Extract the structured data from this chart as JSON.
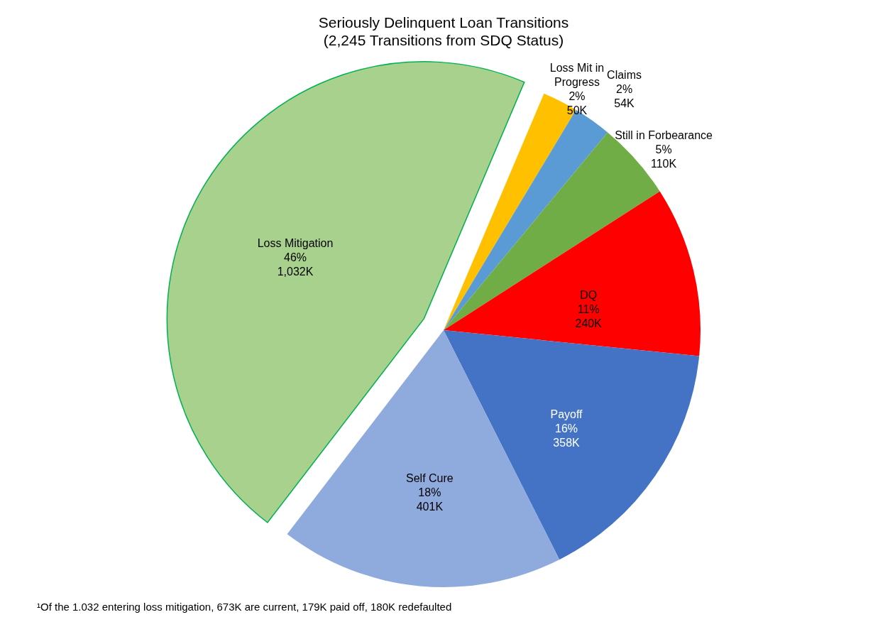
{
  "chart_data": {
    "type": "pie",
    "title": "Seriously Delinquent Loan Transitions",
    "subtitle": "(2,245 Transitions from SDQ Status)",
    "categories": [
      "Loss Mit in\nProgress",
      "Claims",
      "Still in Forbearance",
      "DQ",
      "Payoff",
      "Self Cure",
      "Loss Mitigation"
    ],
    "values": [
      50000,
      54000,
      110000,
      240000,
      358000,
      401000,
      1032000
    ],
    "value_labels": [
      "2%\n50K",
      "2%\n54K",
      "5%\n110K",
      "11%\n240K",
      "16%\n358K",
      "18%\n401K",
      "46%\n1,032K"
    ],
    "colors": [
      "#ffc000",
      "#5b9bd5",
      "#70ad47",
      "#ff0000",
      "#4472c4",
      "#8faadc",
      "#a9d18e"
    ],
    "annotations": [
      "¹Of the 1.032 entering loss mitigation, 673K are current, 179K paid off, 180K redefaulted"
    ]
  }
}
